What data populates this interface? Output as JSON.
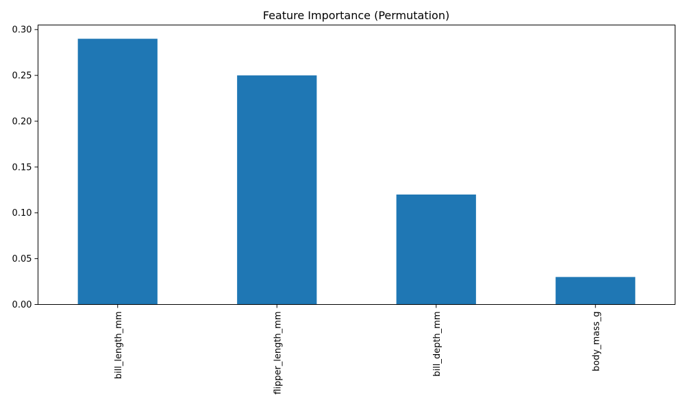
{
  "chart_data": {
    "type": "bar",
    "title": "Feature Importance (Permutation)",
    "xlabel": "",
    "ylabel": "",
    "categories": [
      "bill_length_mm",
      "flipper_length_mm",
      "bill_depth_mm",
      "body_mass_g"
    ],
    "values": [
      0.29,
      0.25,
      0.12,
      0.03
    ],
    "ylim": [
      0,
      0.305
    ],
    "yticks": [
      0.0,
      0.05,
      0.1,
      0.15,
      0.2,
      0.25,
      0.3
    ],
    "ytick_labels": [
      "0.00",
      "0.05",
      "0.10",
      "0.15",
      "0.20",
      "0.25",
      "0.30"
    ],
    "grid": false,
    "legend": "none",
    "bar_color": "#1f77b4",
    "x_tick_rotation": "vertical"
  }
}
